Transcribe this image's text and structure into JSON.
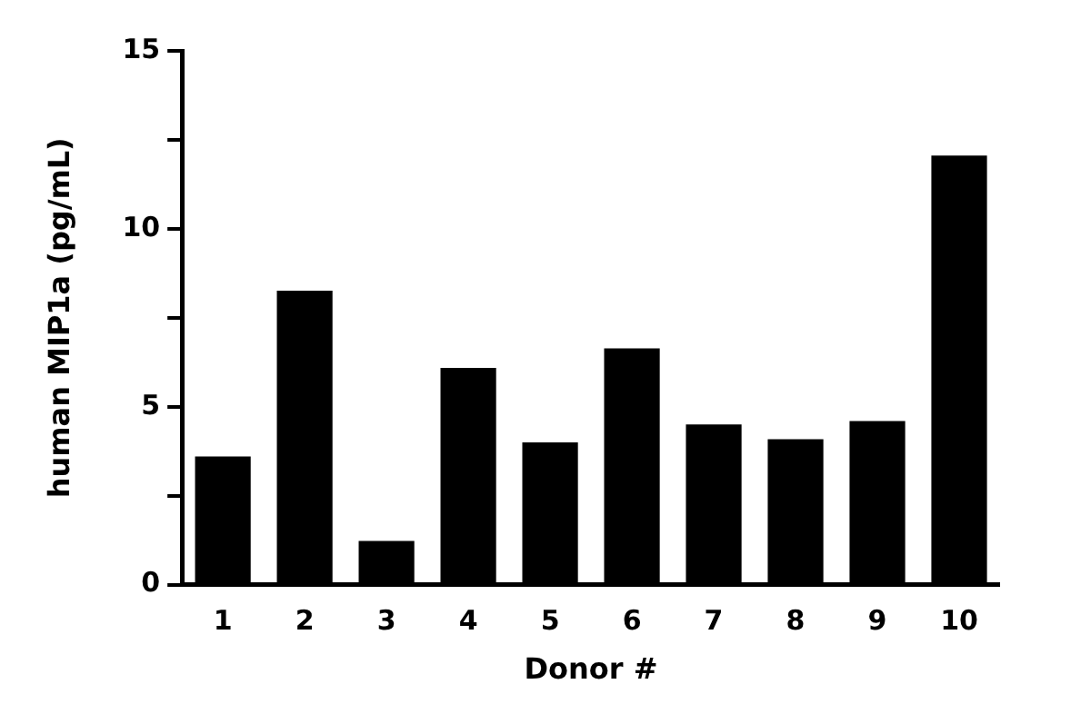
{
  "chart_data": {
    "type": "bar",
    "xlabel": "Donor #",
    "ylabel": "human MIP1a (pg/mL)",
    "categories": [
      "1",
      "2",
      "3",
      "4",
      "5",
      "6",
      "7",
      "8",
      "9",
      "10"
    ],
    "values": [
      3.6,
      8.26,
      1.23,
      6.09,
      4.0,
      6.64,
      4.5,
      4.09,
      4.6,
      12.06
    ],
    "color": "#000000",
    "ylim": [
      0,
      15
    ],
    "yticks": [
      0,
      {
        "value": 2.5,
        "label": null
      },
      5,
      {
        "value": 7.5,
        "label": null
      },
      10,
      {
        "value": 12.5,
        "label": null
      },
      15
    ],
    "grid": false,
    "legend": false
  }
}
